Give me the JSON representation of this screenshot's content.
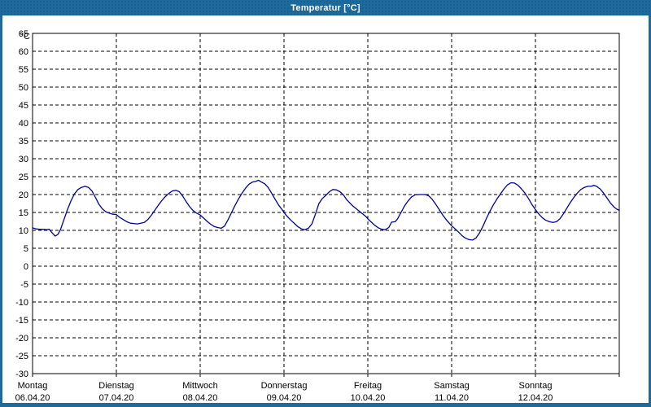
{
  "window": {
    "title": "Temperatur [°C]",
    "title_bar_color": "#1d6b9d",
    "frame_color": "#1d6b9d",
    "background": "#ffffff"
  },
  "chart_data": {
    "type": "line",
    "title": "Temperatur [°C]",
    "unit_label": "°C",
    "line_color": "#0000a0",
    "grid": "dashed-black",
    "legend": "none",
    "y_axis": {
      "min": -30,
      "max": 65,
      "tick_step": 5,
      "tick_labels": [
        65,
        60,
        55,
        50,
        45,
        40,
        35,
        30,
        25,
        20,
        15,
        10,
        5,
        0,
        -5,
        -10,
        -15,
        -20,
        -25,
        -30
      ]
    },
    "x_axis": {
      "total_hours": 168,
      "days": [
        {
          "name": "Montag",
          "date": "06.04.20"
        },
        {
          "name": "Dienstag",
          "date": "07.04.20"
        },
        {
          "name": "Mittwoch",
          "date": "08.04.20"
        },
        {
          "name": "Donnerstag",
          "date": "09.04.20"
        },
        {
          "name": "Freitag",
          "date": "10.04.20"
        },
        {
          "name": "Samstag",
          "date": "11.04.20"
        },
        {
          "name": "Sonntag",
          "date": "12.04.20"
        }
      ]
    },
    "series": [
      {
        "name": "Temperatur",
        "points_hours_celsius": [
          [
            0,
            10.7
          ],
          [
            1,
            10.4
          ],
          [
            2,
            10.3
          ],
          [
            3,
            10.3
          ],
          [
            4,
            10.2
          ],
          [
            4.8,
            10.3
          ],
          [
            5.5,
            9.4
          ],
          [
            6.5,
            8.4
          ],
          [
            7.3,
            8.9
          ],
          [
            8,
            10.2
          ],
          [
            9,
            13.0
          ],
          [
            10,
            15.8
          ],
          [
            11,
            18.2
          ],
          [
            12,
            20.2
          ],
          [
            13,
            21.4
          ],
          [
            14,
            22.0
          ],
          [
            15,
            22.3
          ],
          [
            16,
            22.0
          ],
          [
            17,
            21.0
          ],
          [
            18,
            19.2
          ],
          [
            19,
            17.3
          ],
          [
            20,
            16.0
          ],
          [
            21,
            15.2
          ],
          [
            22,
            14.8
          ],
          [
            23,
            14.5
          ],
          [
            24,
            14.4
          ],
          [
            25,
            13.6
          ],
          [
            26,
            13.0
          ],
          [
            27,
            12.4
          ],
          [
            28,
            12.0
          ],
          [
            29,
            11.9
          ],
          [
            30,
            11.8
          ],
          [
            31,
            12.0
          ],
          [
            32,
            12.2
          ],
          [
            33,
            13.0
          ],
          [
            34,
            14.2
          ],
          [
            35,
            15.6
          ],
          [
            36,
            17.0
          ],
          [
            37,
            18.3
          ],
          [
            38,
            19.4
          ],
          [
            39,
            20.3
          ],
          [
            40,
            21.0
          ],
          [
            41,
            21.2
          ],
          [
            42,
            20.8
          ],
          [
            43,
            19.6
          ],
          [
            44,
            18.0
          ],
          [
            45,
            16.6
          ],
          [
            46,
            15.5
          ],
          [
            47,
            14.8
          ],
          [
            48,
            14.3
          ],
          [
            49,
            13.4
          ],
          [
            50,
            12.5
          ],
          [
            51,
            11.7
          ],
          [
            52,
            11.1
          ],
          [
            53,
            10.8
          ],
          [
            54,
            10.6
          ],
          [
            55,
            11.2
          ],
          [
            56,
            13.0
          ],
          [
            57,
            15.0
          ],
          [
            58,
            17.0
          ],
          [
            59,
            18.8
          ],
          [
            60,
            20.4
          ],
          [
            61,
            21.8
          ],
          [
            62,
            22.9
          ],
          [
            63,
            23.5
          ],
          [
            64,
            23.7
          ],
          [
            64.7,
            24.0
          ],
          [
            65.5,
            23.5
          ],
          [
            66.5,
            23.0
          ],
          [
            67.5,
            21.9
          ],
          [
            68.5,
            20.3
          ],
          [
            69.5,
            18.6
          ],
          [
            70.5,
            17.0
          ],
          [
            71.5,
            15.7
          ],
          [
            72,
            15.0
          ],
          [
            73,
            13.8
          ],
          [
            74,
            12.8
          ],
          [
            75,
            11.9
          ],
          [
            76,
            11.0
          ],
          [
            77,
            10.4
          ],
          [
            78,
            10.2
          ],
          [
            79,
            10.6
          ],
          [
            80,
            11.8
          ],
          [
            81,
            14.5
          ],
          [
            82,
            17.5
          ],
          [
            83,
            18.9
          ],
          [
            84,
            19.8
          ],
          [
            85,
            20.8
          ],
          [
            86,
            21.4
          ],
          [
            87,
            21.3
          ],
          [
            88,
            20.8
          ],
          [
            89,
            19.9
          ],
          [
            90,
            18.5
          ],
          [
            91.5,
            17.0
          ],
          [
            93,
            15.8
          ],
          [
            94.5,
            14.6
          ],
          [
            95.5,
            13.8
          ],
          [
            96,
            13.2
          ],
          [
            97,
            12.3
          ],
          [
            98,
            11.4
          ],
          [
            99,
            10.7
          ],
          [
            100,
            10.3
          ],
          [
            101,
            10.2
          ],
          [
            102,
            10.8
          ],
          [
            102.8,
            12.3
          ],
          [
            103.8,
            12.4
          ],
          [
            104.5,
            13.2
          ],
          [
            105.5,
            15.0
          ],
          [
            106.5,
            16.8
          ],
          [
            107.5,
            18.2
          ],
          [
            108.5,
            19.3
          ],
          [
            109.5,
            19.9
          ],
          [
            111,
            20.0
          ],
          [
            112.5,
            20.0
          ],
          [
            113.5,
            19.6
          ],
          [
            114.5,
            18.6
          ],
          [
            115.5,
            17.2
          ],
          [
            116.5,
            15.7
          ],
          [
            117.5,
            14.2
          ],
          [
            118.5,
            12.9
          ],
          [
            119.5,
            11.8
          ],
          [
            120,
            11.3
          ],
          [
            121,
            10.4
          ],
          [
            122,
            9.5
          ],
          [
            123,
            8.5
          ],
          [
            124,
            7.8
          ],
          [
            125,
            7.4
          ],
          [
            126,
            7.3
          ],
          [
            127,
            7.9
          ],
          [
            128,
            9.3
          ],
          [
            129,
            11.2
          ],
          [
            130,
            13.4
          ],
          [
            131,
            15.4
          ],
          [
            132,
            17.2
          ],
          [
            133,
            18.8
          ],
          [
            134,
            20.2
          ],
          [
            135,
            21.6
          ],
          [
            136,
            22.7
          ],
          [
            137,
            23.3
          ],
          [
            138,
            23.2
          ],
          [
            139,
            22.6
          ],
          [
            140,
            21.6
          ],
          [
            141,
            20.4
          ],
          [
            142,
            18.9
          ],
          [
            143,
            17.2
          ],
          [
            144,
            15.8
          ],
          [
            145,
            14.5
          ],
          [
            146,
            13.5
          ],
          [
            147,
            12.8
          ],
          [
            148,
            12.4
          ],
          [
            149,
            12.2
          ],
          [
            150,
            12.4
          ],
          [
            151,
            13.2
          ],
          [
            152,
            14.6
          ],
          [
            153,
            16.2
          ],
          [
            154,
            17.8
          ],
          [
            155,
            19.2
          ],
          [
            156,
            20.4
          ],
          [
            157,
            21.4
          ],
          [
            158,
            22.0
          ],
          [
            159,
            22.3
          ],
          [
            160,
            22.3
          ],
          [
            160.7,
            22.6
          ],
          [
            161.5,
            22.3
          ],
          [
            162.5,
            21.6
          ],
          [
            163.5,
            20.4
          ],
          [
            164.5,
            19.0
          ],
          [
            165.5,
            17.6
          ],
          [
            166.5,
            16.5
          ],
          [
            167.3,
            15.9
          ],
          [
            168,
            15.6
          ]
        ]
      }
    ]
  }
}
